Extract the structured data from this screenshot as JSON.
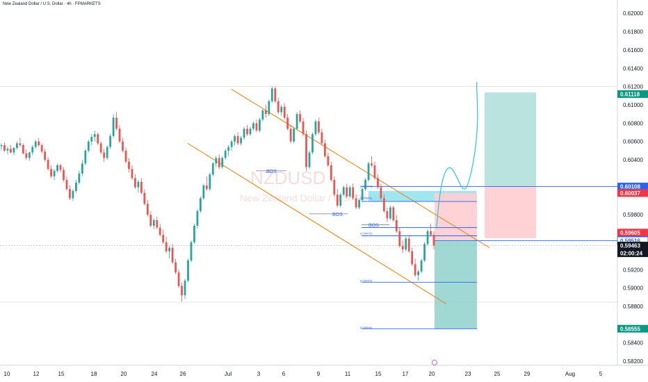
{
  "symbol_title": "New Zealand Dollar / U.S. Dollar · 4h · FPMARKETS",
  "watermark": {
    "symbol": "NZDUSD",
    "name": "New Zealand Dollar / U.S. Dollar"
  },
  "colors": {
    "up": "#26a69a",
    "down": "#ef5350",
    "channel": "#f57c00",
    "level": "#2962ff",
    "projection": "#26c6da",
    "target_zone": "#b2dfdb",
    "stop_zone": "#ffcdd2",
    "fill_zone": "#80deea"
  },
  "chart_data": {
    "type": "candlestick",
    "timeframe": "4h",
    "ylim": [
      0.58155,
      0.62085
    ],
    "y_ticks": [
      "0.62000",
      "0.61800",
      "0.61600",
      "0.61400",
      "0.61200",
      "0.61000",
      "0.60800",
      "0.60600",
      "0.60400",
      "0.60112",
      "0.59800",
      "0.59200",
      "0.59000",
      "0.58800",
      "0.58400",
      "0.58200"
    ],
    "x_ticks": [
      "10",
      "12",
      "15",
      "18",
      "20",
      "24",
      "26",
      "Jul",
      "3",
      "6",
      "9",
      "11",
      "15",
      "17",
      "20",
      "23",
      "25",
      "29",
      "Aug",
      "5"
    ],
    "price_tags": [
      {
        "value": 0.61118,
        "label": "0.61118",
        "style": "green"
      },
      {
        "value": 0.60108,
        "label": "0.60108",
        "style": "blue"
      },
      {
        "value": 0.60037,
        "label": "0.60037",
        "style": "red"
      },
      {
        "value": 0.59605,
        "label": "0.59605",
        "style": "red"
      },
      {
        "value": 0.59524,
        "label": "0.59524",
        "style": "blue"
      },
      {
        "value": 0.59516,
        "label": "0.59516",
        "style": "blueoutline"
      },
      {
        "value": 0.59463,
        "label": "0.59463",
        "style": "dark"
      },
      {
        "value": 0.58555,
        "label": "0.58555",
        "style": "green"
      }
    ],
    "countdown": "02:00:24",
    "annotations": [
      "BOS",
      "BOS",
      "BOS"
    ],
    "fib_labels": [
      "(0.60094)",
      "(0.59965)",
      "(0.59576)",
      "(0.59063)",
      "(0.58550)"
    ],
    "series": [
      {
        "name": "NZDUSD",
        "ohlc": [
          [
            0.6055,
            0.6058,
            0.6051,
            0.6056
          ],
          [
            0.6056,
            0.6059,
            0.6049,
            0.605
          ],
          [
            0.605,
            0.6054,
            0.6046,
            0.6052
          ],
          [
            0.6052,
            0.6056,
            0.6047,
            0.6048
          ],
          [
            0.6048,
            0.6054,
            0.6045,
            0.6053
          ],
          [
            0.6053,
            0.606,
            0.6051,
            0.6058
          ],
          [
            0.6058,
            0.6064,
            0.6054,
            0.6056
          ],
          [
            0.6056,
            0.6058,
            0.6046,
            0.6047
          ],
          [
            0.6047,
            0.6051,
            0.604,
            0.6042
          ],
          [
            0.6042,
            0.6049,
            0.6039,
            0.6048
          ],
          [
            0.6048,
            0.6056,
            0.6045,
            0.6054
          ],
          [
            0.6054,
            0.6062,
            0.6052,
            0.606
          ],
          [
            0.606,
            0.6064,
            0.6054,
            0.6056
          ],
          [
            0.6056,
            0.6058,
            0.6047,
            0.6049
          ],
          [
            0.6049,
            0.6052,
            0.6038,
            0.604
          ],
          [
            0.604,
            0.6043,
            0.6028,
            0.603
          ],
          [
            0.603,
            0.6034,
            0.602,
            0.6022
          ],
          [
            0.6022,
            0.603,
            0.6018,
            0.6028
          ],
          [
            0.6028,
            0.6036,
            0.6026,
            0.6034
          ],
          [
            0.6034,
            0.6036,
            0.6026,
            0.6029
          ],
          [
            0.6029,
            0.6032,
            0.6016,
            0.6018
          ],
          [
            0.6018,
            0.6022,
            0.6006,
            0.6008
          ],
          [
            0.6008,
            0.6012,
            0.5996,
            0.5998
          ],
          [
            0.5998,
            0.6008,
            0.5995,
            0.6006
          ],
          [
            0.6006,
            0.6018,
            0.6004,
            0.6015
          ],
          [
            0.6015,
            0.6028,
            0.6013,
            0.6025
          ],
          [
            0.6025,
            0.604,
            0.6022,
            0.6036
          ],
          [
            0.6036,
            0.6052,
            0.6034,
            0.605
          ],
          [
            0.605,
            0.6062,
            0.6048,
            0.606
          ],
          [
            0.606,
            0.6068,
            0.6056,
            0.6065
          ],
          [
            0.6065,
            0.6072,
            0.606,
            0.6068
          ],
          [
            0.6068,
            0.607,
            0.6056,
            0.6058
          ],
          [
            0.6058,
            0.606,
            0.6046,
            0.6048
          ],
          [
            0.6048,
            0.6052,
            0.6038,
            0.6042
          ],
          [
            0.6042,
            0.6056,
            0.604,
            0.6054
          ],
          [
            0.6054,
            0.6068,
            0.6052,
            0.6066
          ],
          [
            0.6066,
            0.609,
            0.6064,
            0.6086
          ],
          [
            0.6086,
            0.6092,
            0.6072,
            0.6074
          ],
          [
            0.6074,
            0.6078,
            0.6058,
            0.606
          ],
          [
            0.606,
            0.6064,
            0.6048,
            0.605
          ],
          [
            0.605,
            0.6054,
            0.6036,
            0.6038
          ],
          [
            0.6038,
            0.6042,
            0.6026,
            0.603
          ],
          [
            0.603,
            0.6034,
            0.6018,
            0.602
          ],
          [
            0.602,
            0.6024,
            0.6008,
            0.601
          ],
          [
            0.601,
            0.6018,
            0.6004,
            0.6016
          ],
          [
            0.6016,
            0.602,
            0.6002,
            0.6004
          ],
          [
            0.6004,
            0.6008,
            0.599,
            0.5992
          ],
          [
            0.5992,
            0.5996,
            0.5978,
            0.598
          ],
          [
            0.598,
            0.5984,
            0.5966,
            0.5968
          ],
          [
            0.5968,
            0.5976,
            0.5964,
            0.5974
          ],
          [
            0.5974,
            0.5978,
            0.5964,
            0.5966
          ],
          [
            0.5966,
            0.597,
            0.5956,
            0.5958
          ],
          [
            0.5958,
            0.5964,
            0.5948,
            0.595
          ],
          [
            0.595,
            0.5956,
            0.5938,
            0.594
          ],
          [
            0.594,
            0.5946,
            0.5932,
            0.5944
          ],
          [
            0.5944,
            0.5948,
            0.5926,
            0.5928
          ],
          [
            0.5928,
            0.5932,
            0.5915,
            0.5917
          ],
          [
            0.5917,
            0.592,
            0.59,
            0.5902
          ],
          [
            0.5902,
            0.5906,
            0.5885,
            0.5892
          ],
          [
            0.5892,
            0.591,
            0.5888,
            0.5908
          ],
          [
            0.5908,
            0.5932,
            0.5906,
            0.593
          ],
          [
            0.593,
            0.5952,
            0.5928,
            0.595
          ],
          [
            0.595,
            0.597,
            0.5948,
            0.5968
          ],
          [
            0.5968,
            0.5986,
            0.5965,
            0.5984
          ],
          [
            0.5984,
            0.6,
            0.5982,
            0.5998
          ],
          [
            0.5998,
            0.6014,
            0.5996,
            0.6012
          ],
          [
            0.6012,
            0.6022,
            0.6006,
            0.6008
          ],
          [
            0.6008,
            0.6026,
            0.6006,
            0.6024
          ],
          [
            0.6024,
            0.6038,
            0.6022,
            0.6036
          ],
          [
            0.6036,
            0.6044,
            0.6032,
            0.6042
          ],
          [
            0.6042,
            0.6046,
            0.603,
            0.6032
          ],
          [
            0.6032,
            0.6044,
            0.603,
            0.6042
          ],
          [
            0.6042,
            0.6052,
            0.604,
            0.605
          ],
          [
            0.605,
            0.6056,
            0.6044,
            0.6054
          ],
          [
            0.6054,
            0.6062,
            0.605,
            0.606
          ],
          [
            0.606,
            0.6068,
            0.6056,
            0.6066
          ],
          [
            0.6066,
            0.607,
            0.6056,
            0.6058
          ],
          [
            0.6058,
            0.6066,
            0.6056,
            0.6064
          ],
          [
            0.6064,
            0.6076,
            0.6062,
            0.6074
          ],
          [
            0.6074,
            0.6078,
            0.6066,
            0.6068
          ],
          [
            0.6068,
            0.6076,
            0.6066,
            0.6074
          ],
          [
            0.6074,
            0.6082,
            0.6072,
            0.608
          ],
          [
            0.608,
            0.6084,
            0.607,
            0.6072
          ],
          [
            0.6072,
            0.6086,
            0.607,
            0.6084
          ],
          [
            0.6084,
            0.6096,
            0.6082,
            0.6094
          ],
          [
            0.6094,
            0.61,
            0.6086,
            0.609
          ],
          [
            0.609,
            0.6106,
            0.6088,
            0.6104
          ],
          [
            0.6104,
            0.612,
            0.6102,
            0.6118
          ],
          [
            0.6118,
            0.612,
            0.6102,
            0.6104
          ],
          [
            0.6104,
            0.6108,
            0.609,
            0.6092
          ],
          [
            0.6092,
            0.61,
            0.6088,
            0.6098
          ],
          [
            0.6098,
            0.6102,
            0.6084,
            0.6086
          ],
          [
            0.6086,
            0.609,
            0.6072,
            0.6074
          ],
          [
            0.6074,
            0.6078,
            0.6058,
            0.606
          ],
          [
            0.606,
            0.6076,
            0.6058,
            0.6074
          ],
          [
            0.6074,
            0.6092,
            0.6072,
            0.609
          ],
          [
            0.609,
            0.6094,
            0.608,
            0.6082
          ],
          [
            0.6082,
            0.6086,
            0.6066,
            0.6068
          ],
          [
            0.6068,
            0.6072,
            0.6028,
            0.6032
          ],
          [
            0.6032,
            0.605,
            0.603,
            0.6048
          ],
          [
            0.6048,
            0.607,
            0.6046,
            0.6068
          ],
          [
            0.6068,
            0.6084,
            0.6066,
            0.6082
          ],
          [
            0.6082,
            0.6086,
            0.6068,
            0.607
          ],
          [
            0.607,
            0.6074,
            0.6056,
            0.6058
          ],
          [
            0.6058,
            0.6062,
            0.6042,
            0.6044
          ],
          [
            0.6044,
            0.6048,
            0.6032,
            0.6034
          ],
          [
            0.6034,
            0.6038,
            0.6016,
            0.6018
          ],
          [
            0.6018,
            0.6022,
            0.6,
            0.6002
          ],
          [
            0.6002,
            0.6008,
            0.5988,
            0.599
          ],
          [
            0.599,
            0.6004,
            0.5988,
            0.6002
          ],
          [
            0.6002,
            0.6012,
            0.6,
            0.601
          ],
          [
            0.601,
            0.6014,
            0.5998,
            0.6
          ],
          [
            0.6,
            0.6012,
            0.5998,
            0.601
          ],
          [
            0.601,
            0.6014,
            0.5996,
            0.5998
          ],
          [
            0.5998,
            0.6002,
            0.5986,
            0.5988
          ],
          [
            0.5988,
            0.5998,
            0.5986,
            0.5996
          ],
          [
            0.5996,
            0.601,
            0.5994,
            0.6008
          ],
          [
            0.6008,
            0.602,
            0.6006,
            0.6018
          ],
          [
            0.6018,
            0.6038,
            0.6016,
            0.6036
          ],
          [
            0.6036,
            0.6044,
            0.6032,
            0.6034
          ],
          [
            0.6034,
            0.6038,
            0.6018,
            0.602
          ],
          [
            0.602,
            0.6024,
            0.6008,
            0.601
          ],
          [
            0.601,
            0.6014,
            0.5996,
            0.5998
          ],
          [
            0.5998,
            0.6002,
            0.5982,
            0.5984
          ],
          [
            0.5984,
            0.5988,
            0.5972,
            0.5976
          ],
          [
            0.5976,
            0.599,
            0.5974,
            0.5988
          ],
          [
            0.5988,
            0.599,
            0.5972,
            0.5974
          ],
          [
            0.5974,
            0.598,
            0.596,
            0.5962
          ],
          [
            0.5962,
            0.5966,
            0.5944,
            0.5946
          ],
          [
            0.5946,
            0.5952,
            0.5938,
            0.5942
          ],
          [
            0.5942,
            0.5956,
            0.594,
            0.5954
          ],
          [
            0.5954,
            0.5958,
            0.5938,
            0.594
          ],
          [
            0.594,
            0.5944,
            0.5924,
            0.5926
          ],
          [
            0.5926,
            0.5932,
            0.5912,
            0.5914
          ],
          [
            0.5914,
            0.592,
            0.5908,
            0.5918
          ],
          [
            0.5918,
            0.5932,
            0.5916,
            0.593
          ],
          [
            0.593,
            0.595,
            0.5928,
            0.5948
          ],
          [
            0.5948,
            0.5964,
            0.5946,
            0.5962
          ],
          [
            0.5962,
            0.597,
            0.5956,
            0.5958
          ],
          [
            0.5958,
            0.5962,
            0.5942,
            0.59463
          ]
        ]
      }
    ]
  }
}
